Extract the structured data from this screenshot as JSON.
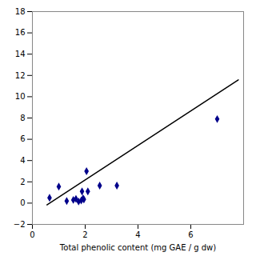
{
  "chart_data": {
    "type": "scatter",
    "xlabel": "Total phenolic content (mg GAE / g dw)",
    "xlim": [
      0,
      8
    ],
    "ylim": [
      -2,
      18
    ],
    "xticks": [
      0,
      2,
      4,
      6
    ],
    "yticks": [
      -2,
      0,
      2,
      4,
      6,
      8,
      10,
      12,
      14,
      16,
      18
    ],
    "series": [
      {
        "type": "scatter",
        "x": [
          0.65,
          1.0,
          1.3,
          1.55,
          1.65,
          1.75,
          1.85,
          1.88,
          1.92,
          1.95,
          2.05,
          2.1,
          2.55,
          3.2,
          7.0
        ],
        "values": [
          0.5,
          1.55,
          0.2,
          0.3,
          0.4,
          0.15,
          0.25,
          1.1,
          0.45,
          0.35,
          3.0,
          1.1,
          1.65,
          1.65,
          7.9
        ],
        "color": "#00008B",
        "marker": "diamond"
      },
      {
        "type": "line",
        "x": [
          0.55,
          7.8
        ],
        "values": [
          -0.159,
          11.586
        ],
        "color": "#000000",
        "line_style": "solid"
      }
    ]
  }
}
